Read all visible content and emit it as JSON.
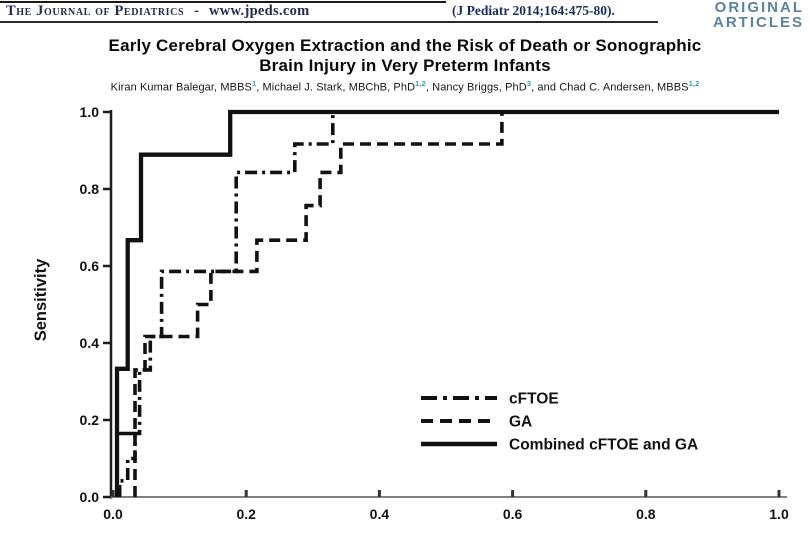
{
  "header": {
    "journal_name": "The Journal of Pediatrics",
    "separator": "-",
    "website": "www.jpeds.com",
    "citation": "(J Pediatr 2014;164:475-80).",
    "article_type_line1": "ORIGINAL",
    "article_type_line2": "ARTICLES",
    "accent_color": "#5b81a1",
    "citation_color": "#1b2d5e"
  },
  "article": {
    "title_line1": "Early Cerebral Oxygen Extraction and the Risk of Death or Sonographic",
    "title_line2": "Brain Injury in Very Preterm Infants",
    "superscript_color": "#2fa0b4",
    "authors": [
      {
        "text": "Kiran Kumar Balegar, MBBS",
        "sup": "1",
        "sep": ", "
      },
      {
        "text": "Michael J. Stark, MBChB, PhD",
        "sup": "1,2",
        "sep": ", "
      },
      {
        "text": "Nancy Briggs, PhD",
        "sup": "3",
        "sep": ", and "
      },
      {
        "text": "Chad C. Andersen, MBBS",
        "sup": "1,2",
        "sep": ""
      }
    ]
  },
  "chart_data": {
    "type": "line",
    "chart_kind": "ROC step curves",
    "title": "",
    "xlabel": "",
    "ylabel": "Sensitivity",
    "xlim": [
      0.0,
      1.0
    ],
    "ylim": [
      0.0,
      1.0
    ],
    "xticks": [
      0.0,
      0.2,
      0.4,
      0.6,
      0.8,
      1.0
    ],
    "yticks": [
      0.0,
      0.2,
      0.4,
      0.6,
      0.8,
      1.0
    ],
    "grid": false,
    "line_color": "#111111",
    "legend_position": "inside lower right",
    "series": [
      {
        "name": "cFTOE",
        "line_style": "dash-dot",
        "points": [
          [
            0.01,
            0
          ],
          [
            0.01,
            0.042
          ],
          [
            0.022,
            0.042
          ],
          [
            0.022,
            0.1
          ],
          [
            0.033,
            0.1
          ],
          [
            0.033,
            0.165
          ],
          [
            0.04,
            0.165
          ],
          [
            0.04,
            0.33
          ],
          [
            0.056,
            0.33
          ],
          [
            0.056,
            0.417
          ],
          [
            0.073,
            0.417
          ],
          [
            0.073,
            0.586
          ],
          [
            0.185,
            0.586
          ],
          [
            0.185,
            0.843
          ],
          [
            0.273,
            0.843
          ],
          [
            0.273,
            0.917
          ],
          [
            0.33,
            0.917
          ],
          [
            0.33,
            1.0
          ],
          [
            1.0,
            1.0
          ]
        ]
      },
      {
        "name": "GA",
        "line_style": "dashed",
        "points": [
          [
            0.033,
            0
          ],
          [
            0.033,
            0.33
          ],
          [
            0.048,
            0.33
          ],
          [
            0.048,
            0.417
          ],
          [
            0.127,
            0.417
          ],
          [
            0.127,
            0.5
          ],
          [
            0.147,
            0.5
          ],
          [
            0.147,
            0.586
          ],
          [
            0.216,
            0.586
          ],
          [
            0.216,
            0.667
          ],
          [
            0.29,
            0.667
          ],
          [
            0.29,
            0.757
          ],
          [
            0.311,
            0.757
          ],
          [
            0.311,
            0.843
          ],
          [
            0.342,
            0.843
          ],
          [
            0.342,
            0.917
          ],
          [
            0.584,
            0.917
          ],
          [
            0.584,
            1.0
          ],
          [
            1.0,
            1.0
          ]
        ]
      },
      {
        "name": "Combined cFTOE and GA",
        "line_style": "solid",
        "points": [
          [
            0.006,
            0
          ],
          [
            0.006,
            0.333
          ],
          [
            0.022,
            0.333
          ],
          [
            0.022,
            0.667
          ],
          [
            0.042,
            0.667
          ],
          [
            0.042,
            0.889
          ],
          [
            0.176,
            0.889
          ],
          [
            0.176,
            1.0
          ],
          [
            1.0,
            1.0
          ]
        ]
      }
    ],
    "tie_segment": {
      "series": "Combined cFTOE and GA",
      "y": 0.165,
      "x_from": 0.006,
      "x_to": 0.031
    }
  }
}
